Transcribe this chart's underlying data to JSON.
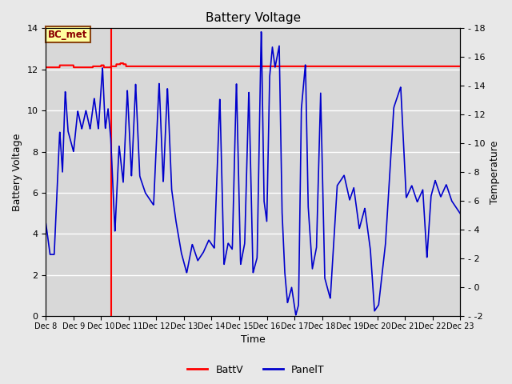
{
  "title": "Battery Voltage",
  "xlabel": "Time",
  "ylabel_left": "Battery Voltage",
  "ylabel_right": "Temperature",
  "xlim_days": [
    8,
    23
  ],
  "ylim_left": [
    0,
    14
  ],
  "ylim_right": [
    -2,
    18
  ],
  "batt_v_value": 12.15,
  "red_line_color": "#FF0000",
  "blue_line_color": "#0000CC",
  "background_color": "#E8E8E8",
  "plot_bg_color": "#D8D8D8",
  "bc_met_box_color": "#FFFFA0",
  "bc_met_border_color": "#8B4513",
  "bc_met_text_color": "#8B0000",
  "legend_line_red": "BattV",
  "legend_line_blue": "PanelT",
  "vertical_red_line_day": 10.35,
  "title_fontsize": 11,
  "label_fontsize": 9,
  "tick_fontsize": 8
}
